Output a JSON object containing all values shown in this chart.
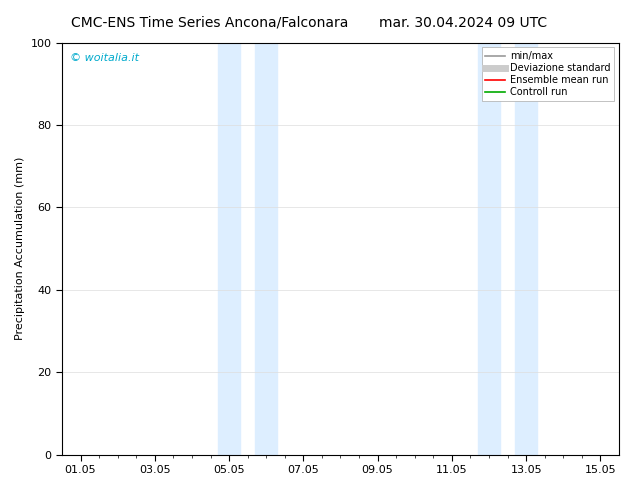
{
  "title_left": "CMC-ENS Time Series Ancona/Falconara",
  "title_right": "mar. 30.04.2024 09 UTC",
  "ylabel": "Precipitation Accumulation (mm)",
  "ylim": [
    0,
    100
  ],
  "yticks": [
    0,
    20,
    40,
    60,
    80,
    100
  ],
  "xtick_labels": [
    "01.05",
    "03.05",
    "05.05",
    "07.05",
    "09.05",
    "11.05",
    "13.05",
    "15.05"
  ],
  "xtick_positions": [
    0,
    2,
    4,
    6,
    8,
    10,
    12,
    14
  ],
  "xlim": [
    -0.5,
    14.5
  ],
  "shaded_regions": [
    {
      "xmin": 3.7,
      "xmax": 4.3,
      "color": "#ddeeff"
    },
    {
      "xmin": 4.7,
      "xmax": 5.3,
      "color": "#ddeeff"
    },
    {
      "xmin": 10.7,
      "xmax": 11.3,
      "color": "#ddeeff"
    },
    {
      "xmin": 11.7,
      "xmax": 12.3,
      "color": "#ddeeff"
    }
  ],
  "watermark": "© woitalia.it",
  "watermark_color": "#00aacc",
  "background_color": "#ffffff",
  "plot_bg_color": "#ffffff",
  "legend_items": [
    {
      "label": "min/max",
      "color": "#999999",
      "lw": 1.2
    },
    {
      "label": "Deviazione standard",
      "color": "#cccccc",
      "lw": 5
    },
    {
      "label": "Ensemble mean run",
      "color": "#ff0000",
      "lw": 1.2
    },
    {
      "label": "Controll run",
      "color": "#00aa00",
      "lw": 1.2
    }
  ],
  "grid_color": "#dddddd",
  "title_fontsize": 10,
  "tick_fontsize": 8,
  "ylabel_fontsize": 8
}
